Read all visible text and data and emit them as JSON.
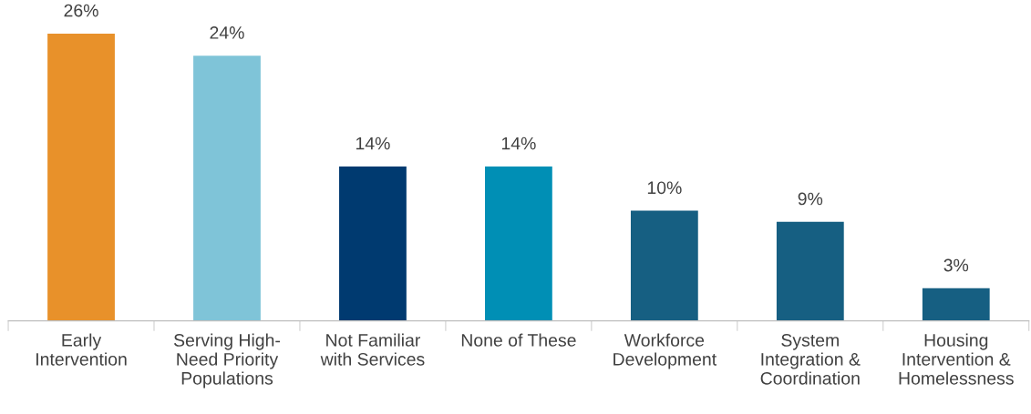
{
  "chart_data": {
    "type": "bar",
    "categories": [
      "Early\nIntervention",
      "Serving High-\nNeed Priority\nPopulations",
      "Not Familiar\nwith Services",
      "None of These",
      "Workforce\nDevelopment",
      "System\nIntegration &\nCoordination",
      "Housing\nIntervention &\nHomelessness"
    ],
    "values": [
      26,
      24,
      14,
      14,
      10,
      9,
      3
    ],
    "colors": [
      "#e8912a",
      "#7fc4d8",
      "#003a70",
      "#008fb5",
      "#165f82",
      "#165f82",
      "#165f82"
    ],
    "value_labels": [
      "26%",
      "24%",
      "14%",
      "14%",
      "10%",
      "9%",
      "3%"
    ],
    "grid": false,
    "legend": false
  }
}
